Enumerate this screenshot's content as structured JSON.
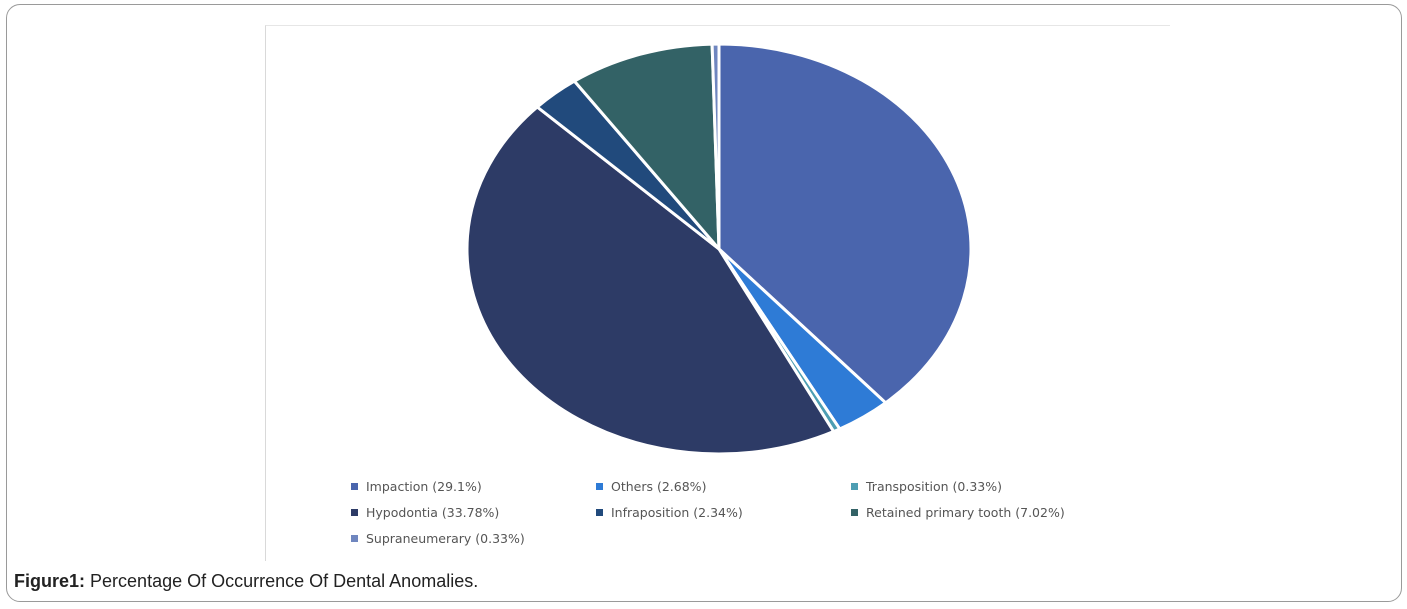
{
  "figure": {
    "label": "Figure1:",
    "caption": "Percentage Of Occurrence Of Dental Anomalies."
  },
  "chart_data": {
    "type": "pie",
    "title": "",
    "start_angle_deg": 0,
    "direction": "clockwise",
    "slices": [
      {
        "label": "Impaction",
        "legend": "Impaction (29.1%)",
        "value": 29.1,
        "color": "#4a65ad"
      },
      {
        "label": "Others",
        "legend": "Others (2.68%)",
        "value": 2.68,
        "color": "#2e7bd6"
      },
      {
        "label": "Transposition",
        "legend": "Transposition (0.33%)",
        "value": 0.33,
        "color": "#4d9eb3"
      },
      {
        "label": "Hypodontia",
        "legend": "Hypodontia (33.78%)",
        "value": 33.78,
        "color": "#2d3b66"
      },
      {
        "label": "Infraposition",
        "legend": "Infraposition (2.34%)",
        "value": 2.34,
        "color": "#214a7c"
      },
      {
        "label": "Retained primary tooth",
        "legend": "Retained primary tooth (7.02%)",
        "value": 7.02,
        "color": "#336266"
      },
      {
        "label": "Supraneumerary",
        "legend": "Supraneumerary (0.33%)",
        "value": 0.33,
        "color": "#6f86bf"
      }
    ],
    "legend_position": "bottom"
  }
}
